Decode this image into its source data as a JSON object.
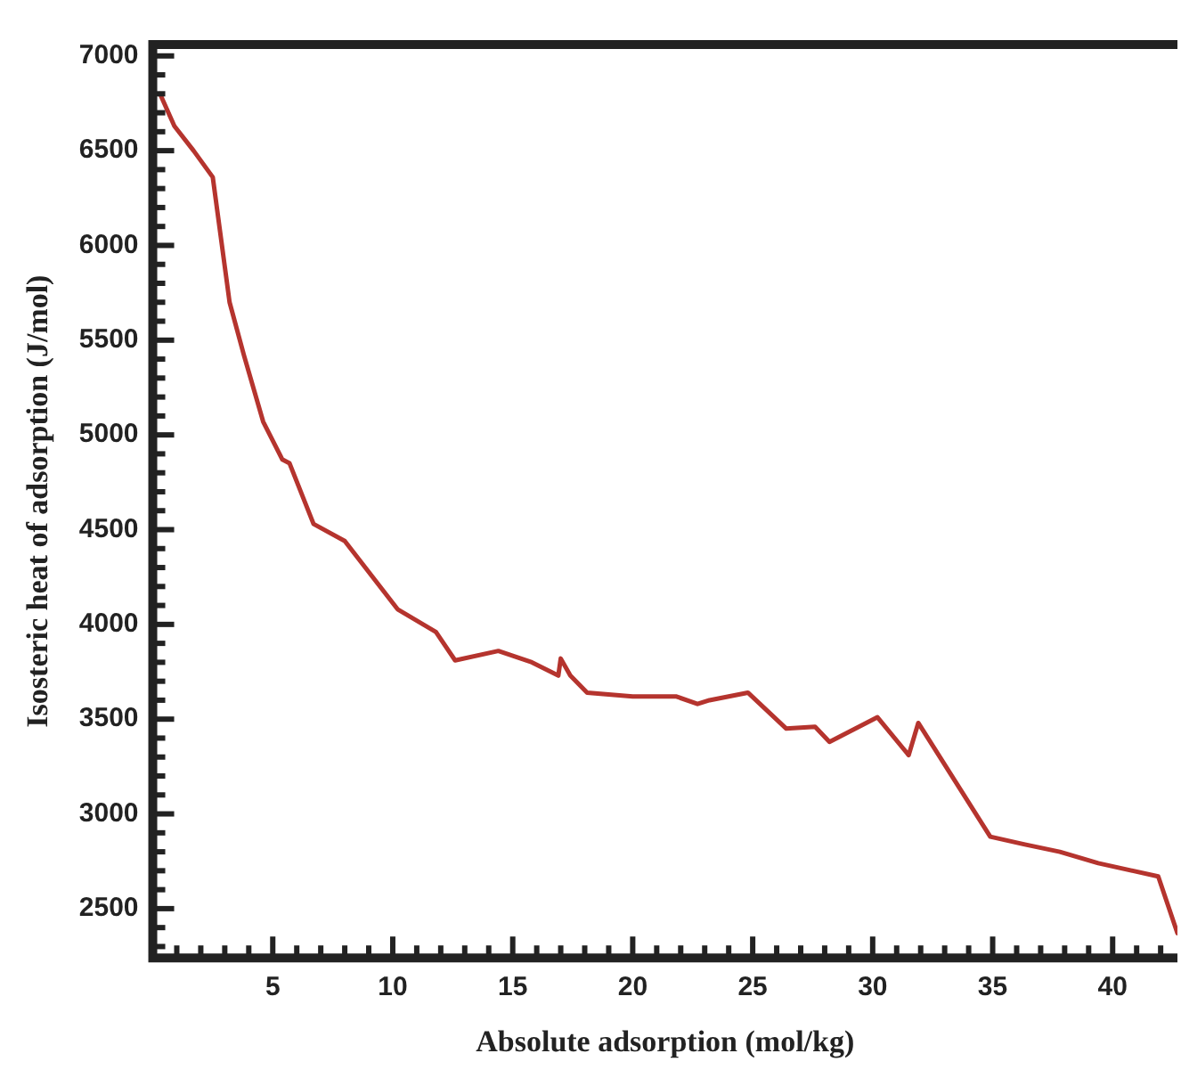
{
  "chart_data": {
    "type": "line",
    "xlabel": "Absolute adsorption (mol/kg)",
    "ylabel": "Isosteric heat of adsorption (J/mol)",
    "x": [
      0.3,
      0.9,
      1.7,
      2.5,
      3.2,
      3.8,
      4.6,
      5.4,
      5.7,
      6.7,
      8.0,
      10.2,
      11.8,
      12.6,
      14.4,
      15.8,
      16.9,
      17.0,
      17.4,
      18.1,
      20.0,
      21.8,
      22.7,
      23.2,
      24.8,
      26.4,
      27.6,
      28.2,
      30.2,
      31.5,
      31.9,
      34.9,
      36.3,
      37.8,
      39.4,
      41.9,
      42.7
    ],
    "series": [
      {
        "color": "#b5342e",
        "values": [
          6800,
          6630,
          6500,
          6360,
          5700,
          5420,
          5070,
          4870,
          4850,
          4530,
          4440,
          4080,
          3960,
          3810,
          3860,
          3800,
          3730,
          3820,
          3730,
          3640,
          3620,
          3620,
          3580,
          3600,
          3640,
          3450,
          3460,
          3380,
          3510,
          3310,
          3480,
          2880,
          2840,
          2800,
          2740,
          2670,
          2370
        ]
      }
    ],
    "xlim": [
      0,
      42.7
    ],
    "ylim": [
      2240,
      7060
    ],
    "xticks": [
      {
        "value": 1,
        "label": null
      },
      {
        "value": 2,
        "label": null
      },
      {
        "value": 3,
        "label": null
      },
      {
        "value": 4,
        "label": null
      },
      5,
      {
        "value": 6,
        "label": null
      },
      {
        "value": 7,
        "label": null
      },
      {
        "value": 8,
        "label": null
      },
      {
        "value": 9,
        "label": null
      },
      10,
      {
        "value": 11,
        "label": null
      },
      {
        "value": 12,
        "label": null
      },
      {
        "value": 13,
        "label": null
      },
      {
        "value": 14,
        "label": null
      },
      15,
      {
        "value": 16,
        "label": null
      },
      {
        "value": 17,
        "label": null
      },
      {
        "value": 18,
        "label": null
      },
      {
        "value": 19,
        "label": null
      },
      20,
      {
        "value": 21,
        "label": null
      },
      {
        "value": 22,
        "label": null
      },
      {
        "value": 23,
        "label": null
      },
      {
        "value": 24,
        "label": null
      },
      25,
      {
        "value": 26,
        "label": null
      },
      {
        "value": 27,
        "label": null
      },
      {
        "value": 28,
        "label": null
      },
      {
        "value": 29,
        "label": null
      },
      30,
      {
        "value": 31,
        "label": null
      },
      {
        "value": 32,
        "label": null
      },
      {
        "value": 33,
        "label": null
      },
      {
        "value": 34,
        "label": null
      },
      35,
      {
        "value": 36,
        "label": null
      },
      {
        "value": 37,
        "label": null
      },
      {
        "value": 38,
        "label": null
      },
      {
        "value": 39,
        "label": null
      },
      40,
      {
        "value": 41,
        "label": null
      },
      {
        "value": 42,
        "label": null
      }
    ],
    "yticks": [
      {
        "value": 2300,
        "label": null
      },
      {
        "value": 2400,
        "label": null
      },
      2500,
      {
        "value": 2600,
        "label": null
      },
      {
        "value": 2700,
        "label": null
      },
      {
        "value": 2800,
        "label": null
      },
      {
        "value": 2900,
        "label": null
      },
      3000,
      {
        "value": 3100,
        "label": null
      },
      {
        "value": 3200,
        "label": null
      },
      {
        "value": 3300,
        "label": null
      },
      {
        "value": 3400,
        "label": null
      },
      3500,
      {
        "value": 3600,
        "label": null
      },
      {
        "value": 3700,
        "label": null
      },
      {
        "value": 3800,
        "label": null
      },
      {
        "value": 3900,
        "label": null
      },
      4000,
      {
        "value": 4100,
        "label": null
      },
      {
        "value": 4200,
        "label": null
      },
      {
        "value": 4300,
        "label": null
      },
      {
        "value": 4400,
        "label": null
      },
      4500,
      {
        "value": 4600,
        "label": null
      },
      {
        "value": 4700,
        "label": null
      },
      {
        "value": 4800,
        "label": null
      },
      {
        "value": 4900,
        "label": null
      },
      5000,
      {
        "value": 5100,
        "label": null
      },
      {
        "value": 5200,
        "label": null
      },
      {
        "value": 5300,
        "label": null
      },
      {
        "value": 5400,
        "label": null
      },
      5500,
      {
        "value": 5600,
        "label": null
      },
      {
        "value": 5700,
        "label": null
      },
      {
        "value": 5800,
        "label": null
      },
      {
        "value": 5900,
        "label": null
      },
      6000,
      {
        "value": 6100,
        "label": null
      },
      {
        "value": 6200,
        "label": null
      },
      {
        "value": 6300,
        "label": null
      },
      {
        "value": 6400,
        "label": null
      },
      6500,
      {
        "value": 6600,
        "label": null
      },
      {
        "value": 6700,
        "label": null
      },
      {
        "value": 6800,
        "label": null
      },
      {
        "value": 6900,
        "label": null
      },
      7000
    ],
    "grid": false,
    "legend": false,
    "marker": "none",
    "line_style": "solid"
  }
}
